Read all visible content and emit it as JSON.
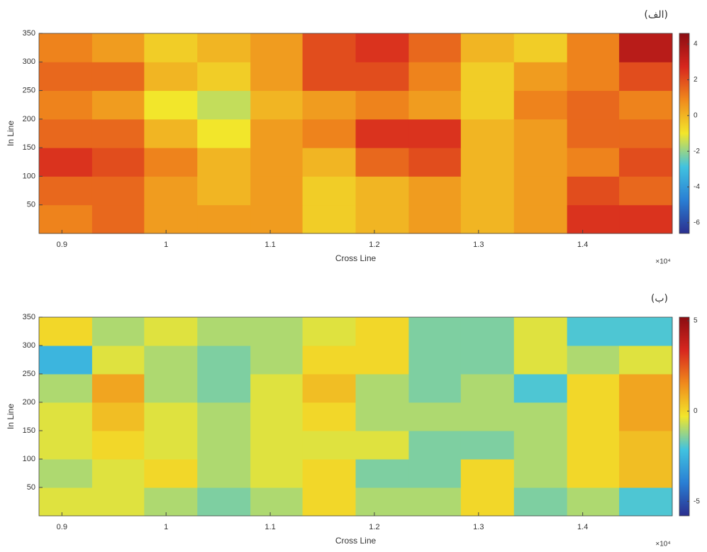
{
  "chart_data": [
    {
      "type": "heatmap",
      "title": "(الف)",
      "xlabel": "Cross Line",
      "ylabel": "In Line",
      "x_multiplier": "×10⁴",
      "xlim": [
        0.878,
        1.486
      ],
      "xticks": [
        0.9,
        1,
        1.1,
        1.2,
        1.3,
        1.4
      ],
      "ylim": [
        0,
        350
      ],
      "yticks": [
        50,
        100,
        150,
        200,
        250,
        300,
        350
      ],
      "x_bins": [
        0.878,
        0.929,
        0.979,
        1.03,
        1.081,
        1.131,
        1.182,
        1.233,
        1.283,
        1.334,
        1.385,
        1.435,
        1.486
      ],
      "y_bins": [
        0,
        50,
        100,
        150,
        200,
        250,
        300,
        350
      ],
      "z": [
        [
          1,
          1.5,
          0.5,
          0.5,
          0.5,
          -0.5,
          0,
          0.5,
          0,
          0.5,
          2.5,
          2.5
        ],
        [
          1.5,
          1.5,
          0.5,
          0,
          0.5,
          -0.5,
          0,
          0.5,
          0,
          0.5,
          2,
          1.5
        ],
        [
          2.5,
          2,
          1,
          0,
          0.5,
          0,
          1.5,
          2,
          0,
          0.5,
          1,
          2
        ],
        [
          1.5,
          1.5,
          0,
          -1,
          0.5,
          1,
          2.5,
          2.5,
          0,
          0.5,
          1.5,
          1.5
        ],
        [
          1,
          0.5,
          -1,
          -1.5,
          0,
          0.5,
          1,
          0.5,
          -0.5,
          1,
          1.5,
          1
        ],
        [
          1.5,
          1.5,
          0,
          -0.5,
          0.5,
          2,
          2,
          1,
          -0.5,
          0.5,
          1,
          2
        ],
        [
          1,
          0.5,
          -0.5,
          0,
          0.5,
          2,
          2.5,
          1.5,
          0,
          -0.5,
          1,
          3.5
        ]
      ],
      "clim": [
        -6.6,
        4.6
      ],
      "cticks": [
        4,
        2,
        0,
        -2,
        -4,
        -6
      ],
      "colormap": [
        "#2b2f8f",
        "#2a7fd4",
        "#41c3e0",
        "#f2e62b",
        "#f08a1c",
        "#d7261e",
        "#8b0d12"
      ]
    },
    {
      "type": "heatmap",
      "title": "(ب)",
      "xlabel": "Cross Line",
      "ylabel": "In Line",
      "x_multiplier": "×10⁴",
      "xlim": [
        0.878,
        1.486
      ],
      "xticks": [
        0.9,
        1,
        1.1,
        1.2,
        1.3,
        1.4
      ],
      "ylim": [
        0,
        350
      ],
      "yticks": [
        50,
        100,
        150,
        200,
        250,
        300,
        350
      ],
      "x_bins": [
        0.878,
        0.929,
        0.979,
        1.03,
        1.081,
        1.131,
        1.182,
        1.233,
        1.283,
        1.334,
        1.385,
        1.435,
        1.486
      ],
      "y_bins": [
        0,
        50,
        100,
        150,
        200,
        250,
        300,
        350
      ],
      "z": [
        [
          -0.5,
          -0.5,
          -1,
          -1.5,
          -1,
          0,
          -1,
          -1,
          0,
          -1.5,
          -1,
          -2
        ],
        [
          -1,
          -0.5,
          0,
          -1,
          -0.5,
          0,
          -1.5,
          -1.5,
          0,
          -1,
          0,
          0.5
        ],
        [
          -0.5,
          0,
          -0.5,
          -1,
          -0.5,
          -0.5,
          -0.5,
          -1.5,
          -1.5,
          -1,
          0,
          0.5
        ],
        [
          -0.5,
          0.5,
          -0.5,
          -1,
          -0.5,
          0,
          -1,
          -1,
          -1,
          -1,
          0,
          1
        ],
        [
          -1,
          1,
          -1,
          -1.5,
          -0.5,
          0.5,
          -1,
          -1.5,
          -1,
          -2,
          0,
          1
        ],
        [
          -2.5,
          -0.5,
          -1,
          -1.5,
          -1,
          0,
          0,
          -1.5,
          -1.5,
          -0.5,
          -1,
          -0.5
        ],
        [
          0,
          -1,
          -0.5,
          -1,
          -1,
          -0.5,
          0,
          -1.5,
          -1.5,
          -0.5,
          -2,
          -2
        ]
      ],
      "clim": [
        -5.8,
        5.2
      ],
      "cticks": [
        5,
        0,
        -5
      ],
      "colormap": [
        "#2b2f8f",
        "#2a7fd4",
        "#41c3e0",
        "#f2e62b",
        "#f08a1c",
        "#d7261e",
        "#8b0d12"
      ]
    }
  ]
}
